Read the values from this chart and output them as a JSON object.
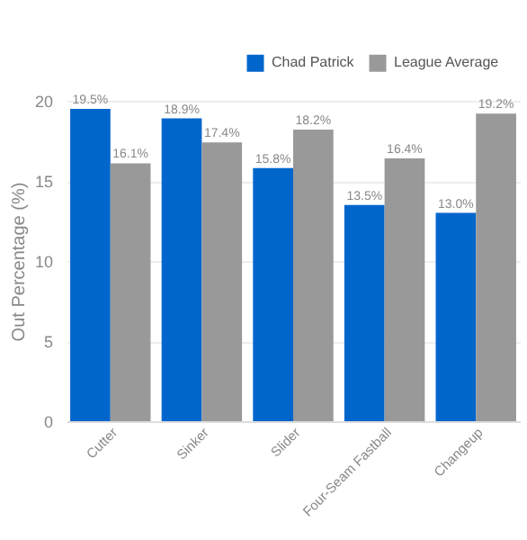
{
  "chart_data": {
    "type": "bar",
    "ylabel": "Out Percentage (%)",
    "categories": [
      "Cutter",
      "Sinker",
      "Slider",
      "Four-Seam Fastball",
      "Changeup"
    ],
    "series": [
      {
        "name": "Chad Patrick",
        "color": "#0066cc",
        "values": [
          19.5,
          18.9,
          15.8,
          13.5,
          13.0
        ],
        "value_labels": [
          "19.5%",
          "18.9%",
          "15.8%",
          "13.5%",
          "13.0%"
        ]
      },
      {
        "name": "League Average",
        "color": "#999999",
        "values": [
          16.1,
          17.4,
          18.2,
          16.4,
          19.2
        ],
        "value_labels": [
          "16.1%",
          "17.4%",
          "18.2%",
          "16.4%",
          "19.2%"
        ]
      }
    ],
    "ylim": [
      0,
      20
    ],
    "yticks": [
      0,
      5,
      10,
      15,
      20
    ],
    "grid": "y",
    "legend": "top right"
  }
}
